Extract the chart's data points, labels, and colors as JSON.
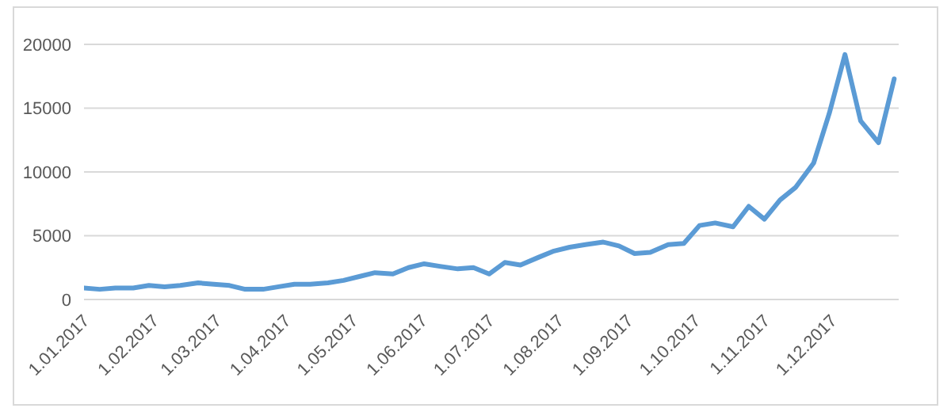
{
  "chart_data": {
    "type": "line",
    "x": [
      "2017-01-01",
      "2017-01-08",
      "2017-01-15",
      "2017-01-23",
      "2017-01-30",
      "2017-02-06",
      "2017-02-13",
      "2017-02-21",
      "2017-02-28",
      "2017-03-07",
      "2017-03-14",
      "2017-03-22",
      "2017-03-29",
      "2017-04-05",
      "2017-04-12",
      "2017-04-20",
      "2017-04-27",
      "2017-05-04",
      "2017-05-11",
      "2017-05-19",
      "2017-05-26",
      "2017-06-02",
      "2017-06-09",
      "2017-06-17",
      "2017-06-24",
      "2017-07-01",
      "2017-07-08",
      "2017-07-15",
      "2017-07-23",
      "2017-07-30",
      "2017-08-06",
      "2017-08-13",
      "2017-08-21",
      "2017-08-28",
      "2017-09-04",
      "2017-09-11",
      "2017-09-19",
      "2017-09-26",
      "2017-10-03",
      "2017-10-10",
      "2017-10-18",
      "2017-10-25",
      "2017-11-01",
      "2017-11-08",
      "2017-11-15",
      "2017-11-23",
      "2017-11-30",
      "2017-12-07",
      "2017-12-14",
      "2017-12-22",
      "2017-12-29"
    ],
    "series": [
      {
        "color": "#5b9bd5",
        "values": [
          900,
          800,
          900,
          900,
          1100,
          1000,
          1100,
          1300,
          1200,
          1100,
          800,
          800,
          1000,
          1200,
          1200,
          1300,
          1500,
          1800,
          2100,
          2000,
          2500,
          2800,
          2600,
          2400,
          2500,
          2000,
          2900,
          2700,
          3300,
          3800,
          4100,
          4300,
          4500,
          4200,
          3600,
          3700,
          4300,
          4400,
          5800,
          6000,
          5700,
          7300,
          6300,
          7800,
          8800,
          10700,
          14600,
          19200,
          14000,
          12300,
          17300
        ]
      }
    ],
    "xlim": [
      "2017-01-01",
      "2017-12-31"
    ],
    "xticks": [
      {
        "value": "2017-01-01",
        "label": "1.01.2017"
      },
      {
        "value": "2017-02-01",
        "label": "1.02.2017"
      },
      {
        "value": "2017-03-01",
        "label": "1.03.2017"
      },
      {
        "value": "2017-04-01",
        "label": "1.04.2017"
      },
      {
        "value": "2017-05-01",
        "label": "1.05.2017"
      },
      {
        "value": "2017-06-01",
        "label": "1.06.2017"
      },
      {
        "value": "2017-07-01",
        "label": "1.07.2017"
      },
      {
        "value": "2017-08-01",
        "label": "1.08.2017"
      },
      {
        "value": "2017-09-01",
        "label": "1.09.2017"
      },
      {
        "value": "2017-10-01",
        "label": "1.10.2017"
      },
      {
        "value": "2017-11-01",
        "label": "1.11.2017"
      },
      {
        "value": "2017-12-01",
        "label": "1.12.2017"
      }
    ],
    "ylim": [
      0,
      20000
    ],
    "yticks": [
      0,
      5000,
      10000,
      15000,
      20000
    ],
    "grid": "y",
    "marker": "none",
    "line_style": "solid"
  }
}
